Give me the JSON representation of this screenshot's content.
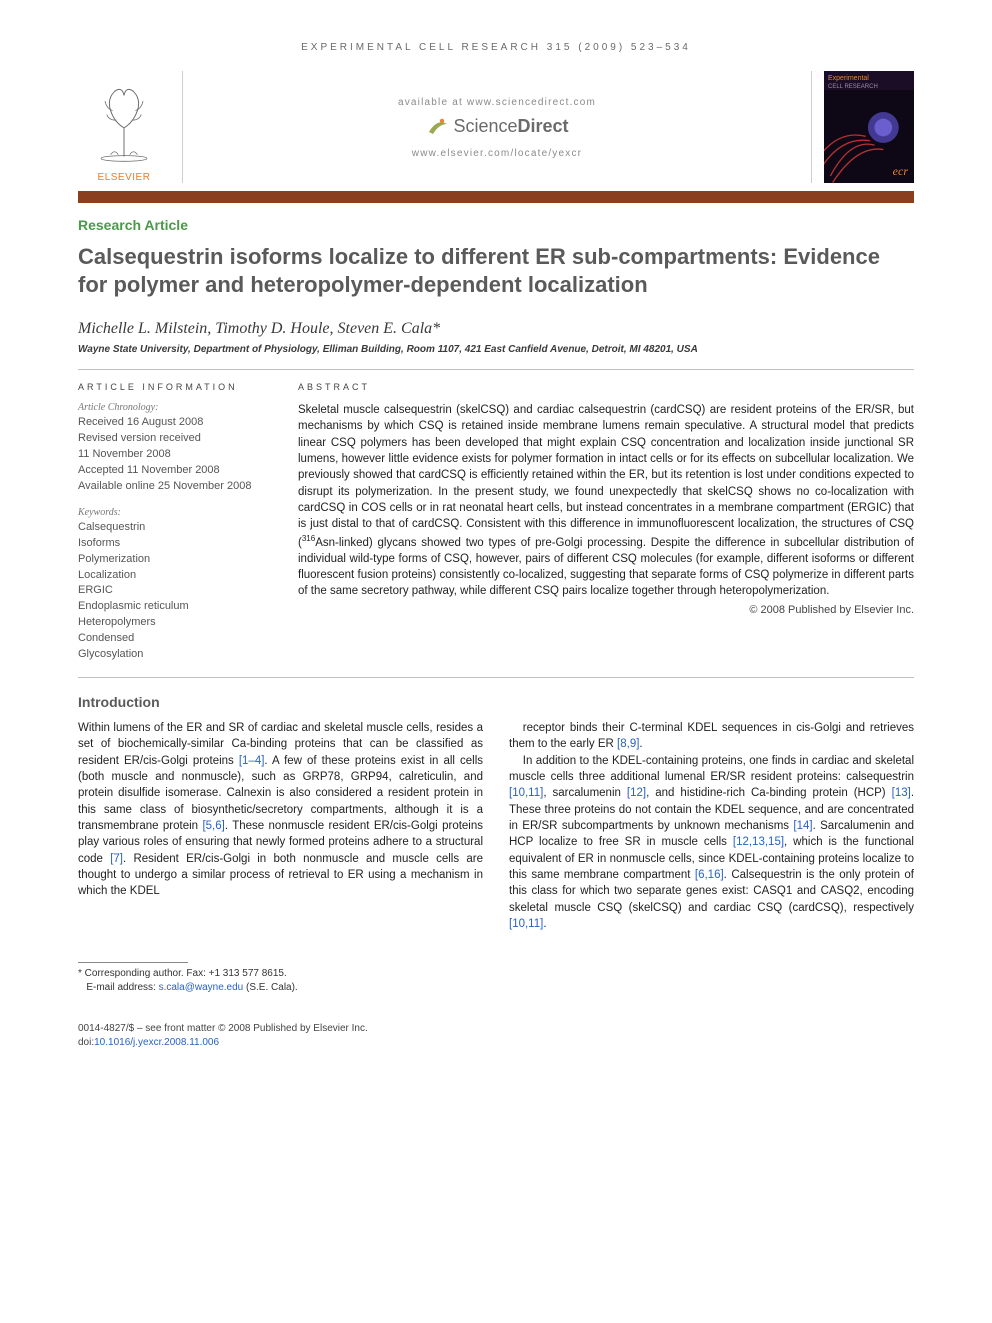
{
  "running_header": "EXPERIMENTAL CELL RESEARCH 315 (2009) 523–534",
  "masthead": {
    "elsevier_label": "ELSEVIER",
    "available_text": "available at www.sciencedirect.com",
    "sd_brand_left": "Science",
    "sd_brand_right": "Direct",
    "journal_url": "www.elsevier.com/locate/yexcr",
    "cover_title_main": "Experimental",
    "cover_title_sub": "CELL RESEARCH",
    "cover_ecr": "ecr"
  },
  "article_type": "Research Article",
  "title": "Calsequestrin isoforms localize to different ER sub-compartments: Evidence for polymer and heteropolymer-dependent localization",
  "authors": "Michelle L. Milstein, Timothy D. Houle, Steven E. Cala*",
  "affiliation": "Wayne State University, Department of Physiology, Elliman Building, Room 1107, 421 East Canfield Avenue, Detroit, MI 48201, USA",
  "article_info": {
    "heading": "ARTICLE INFORMATION",
    "chronology_label": "Article Chronology:",
    "received": "Received 16 August 2008",
    "revised_label": "Revised version received",
    "revised_date": "11 November 2008",
    "accepted": "Accepted 11 November 2008",
    "online": "Available online 25 November 2008",
    "keywords_label": "Keywords:",
    "keywords": [
      "Calsequestrin",
      "Isoforms",
      "Polymerization",
      "Localization",
      "ERGIC",
      "Endoplasmic reticulum",
      "Heteropolymers",
      "Condensed",
      "Glycosylation"
    ]
  },
  "abstract": {
    "heading": "ABSTRACT",
    "text": "Skeletal muscle calsequestrin (skelCSQ) and cardiac calsequestrin (cardCSQ) are resident proteins of the ER/SR, but mechanisms by which CSQ is retained inside membrane lumens remain speculative. A structural model that predicts linear CSQ polymers has been developed that might explain CSQ concentration and localization inside junctional SR lumens, however little evidence exists for polymer formation in intact cells or for its effects on subcellular localization. We previously showed that cardCSQ is efficiently retained within the ER, but its retention is lost under conditions expected to disrupt its polymerization. In the present study, we found unexpectedly that skelCSQ shows no co-localization with cardCSQ in COS cells or in rat neonatal heart cells, but instead concentrates in a membrane compartment (ERGIC) that is just distal to that of cardCSQ. Consistent with this difference in immunofluorescent localization, the structures of CSQ (316Asn-linked) glycans showed two types of pre-Golgi processing. Despite the difference in subcellular distribution of individual wild-type forms of CSQ, however, pairs of different CSQ molecules (for example, different isoforms or different fluorescent fusion proteins) consistently co-localized, suggesting that separate forms of CSQ polymerize in different parts of the same secretory pathway, while different CSQ pairs localize together through heteropolymerization.",
    "copyright": "© 2008 Published by Elsevier Inc."
  },
  "intro": {
    "heading": "Introduction",
    "p1": "Within lumens of the ER and SR of cardiac and skeletal muscle cells, resides a set of biochemically-similar Ca-binding proteins that can be classified as resident ER/cis-Golgi proteins [1–4]. A few of these proteins exist in all cells (both muscle and nonmuscle), such as GRP78, GRP94, calreticulin, and protein disulfide isomerase. Calnexin is also considered a resident protein in this same class of biosynthetic/secretory compartments, although it is a transmembrane protein [5,6]. These nonmuscle resident ER/cis-Golgi proteins play various roles of ensuring that newly formed proteins adhere to a structural code [7]. Resident ER/cis-Golgi in both nonmuscle and muscle cells are thought to undergo a similar process of retrieval to ER using a mechanism in which the KDEL",
    "p2": "receptor binds their C-terminal KDEL sequences in cis-Golgi and retrieves them to the early ER [8,9].",
    "p3": "In addition to the KDEL-containing proteins, one finds in cardiac and skeletal muscle cells three additional lumenal ER/SR resident proteins: calsequestrin [10,11], sarcalumenin [12], and histidine-rich Ca-binding protein (HCP) [13]. These three proteins do not contain the KDEL sequence, and are concentrated in ER/SR subcompartments by unknown mechanisms [14]. Sarcalumenin and HCP localize to free SR in muscle cells [12,13,15], which is the functional equivalent of ER in nonmuscle cells, since KDEL-containing proteins localize to this same membrane compartment [6,16]. Calsequestrin is the only protein of this class for which two separate genes exist: CASQ1 and CASQ2, encoding skeletal muscle CSQ (skelCSQ) and cardiac CSQ (cardCSQ), respectively [10,11]."
  },
  "footnotes": {
    "corresponding": "* Corresponding author. Fax: +1 313 577 8615.",
    "email_label": "E-mail address:",
    "email": "s.cala@wayne.edu",
    "email_suffix": "(S.E. Cala)."
  },
  "bottom": {
    "issn_line": "0014-4827/$ – see front matter © 2008 Published by Elsevier Inc.",
    "doi_label": "doi:",
    "doi": "10.1016/j.yexcr.2008.11.006"
  },
  "colors": {
    "orange_bar": "#8a3f1e",
    "article_type": "#4a9a4a",
    "title_gray": "#5a5a5a",
    "link_blue": "#2961c4",
    "elsevier_orange": "#ec7b21"
  }
}
